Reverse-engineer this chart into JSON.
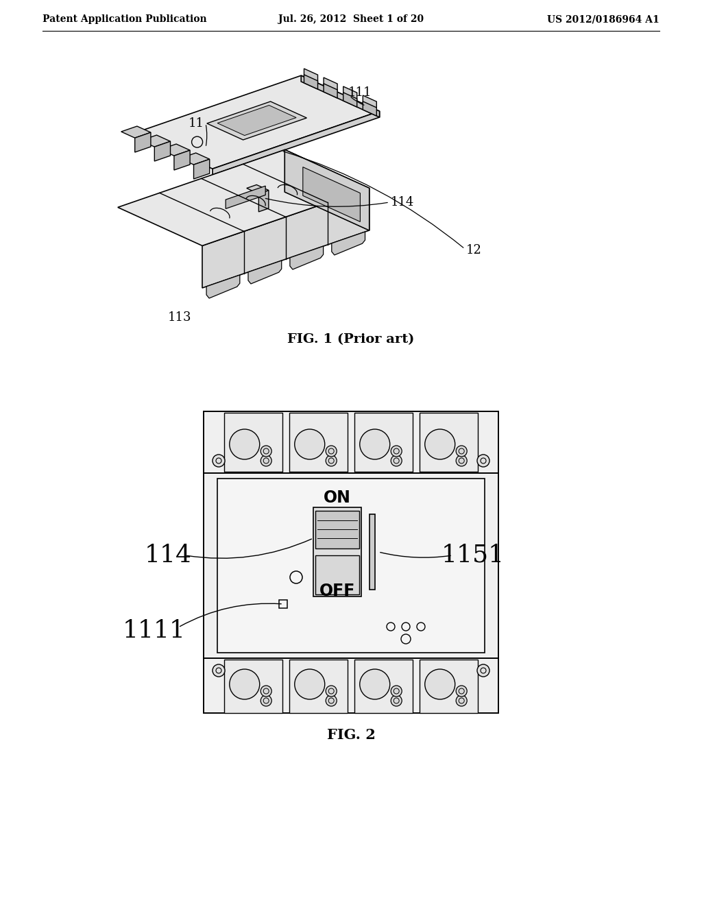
{
  "background_color": "#ffffff",
  "header_left": "Patent Application Publication",
  "header_center": "Jul. 26, 2012  Sheet 1 of 20",
  "header_right": "US 2012/0186964 A1",
  "header_fontsize": 10,
  "fig1_caption": "FIG. 1 (Prior art)",
  "fig2_caption": "FIG. 2",
  "label_11": "11",
  "label_111": "111",
  "label_114_fig1": "114",
  "label_12": "12",
  "label_113": "113",
  "label_114_fig2": "114",
  "label_1151": "1151",
  "label_1111": "1111",
  "label_on": "ON",
  "label_off": "OFF",
  "gray_light": "#d8d8d8",
  "gray_mid": "#b0b0b0"
}
